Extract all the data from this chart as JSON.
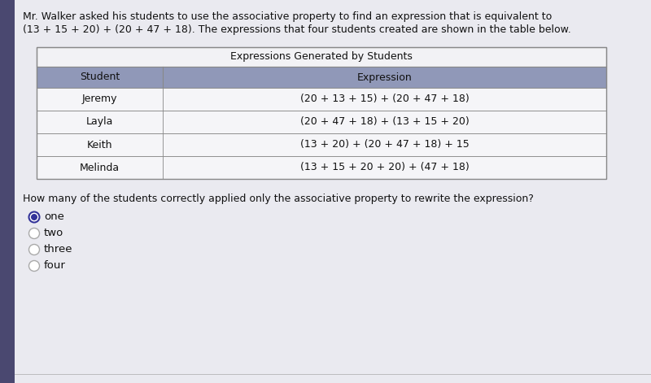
{
  "left_sidebar_color": "#4a4870",
  "background_color": "#c8c8d4",
  "content_bg": "#eaeaf0",
  "intro_line1": "Mr. Walker asked his students to use the associative property to find an expression that is equivalent to",
  "intro_line2": "(13 + 15 + 20) + (20 + 47 + 18). The expressions that four students created are shown in the table below.",
  "table_title": "Expressions Generated by Students",
  "header_bg": "#9098b8",
  "header_text_color": "#111111",
  "row_bg": "#f5f5f8",
  "col1_header": "Student",
  "col2_header": "Expression",
  "rows": [
    [
      "Jeremy",
      "(20 + 13 + 15) + (20 + 47 + 18)"
    ],
    [
      "Layla",
      "(20 + 47 + 18) + (13 + 15 + 20)"
    ],
    [
      "Keith",
      "(13 + 20) + (20 + 47 + 18) + 15"
    ],
    [
      "Melinda",
      "(13 + 15 + 20 + 20) + (47 + 18)"
    ]
  ],
  "question_text": "How many of the students correctly applied only the associative property to rewrite the expression?",
  "options": [
    "one",
    "two",
    "three",
    "four"
  ],
  "selected_option": 0,
  "selected_dot_color": "#333399",
  "unselected_color": "#aaaaaa",
  "text_color": "#111111",
  "intro_fontsize": 9.0,
  "table_fontsize": 9.0,
  "question_fontsize": 9.0,
  "option_fontsize": 9.5
}
